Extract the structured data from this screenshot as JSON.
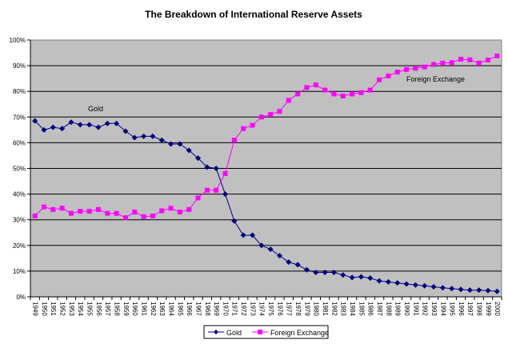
{
  "chart_data": {
    "type": "line",
    "title": "The Breakdown of International Reserve Assets",
    "xlabel": "",
    "ylabel": "",
    "ylim": [
      0,
      100
    ],
    "y_ticks": [
      "0%",
      "10%",
      "20%",
      "30%",
      "40%",
      "50%",
      "60%",
      "70%",
      "80%",
      "90%",
      "100%"
    ],
    "grid": true,
    "legend_position": "bottom",
    "x": [
      "1949",
      "1950",
      "1951",
      "1952",
      "1953",
      "1954",
      "1955",
      "1956",
      "1957",
      "1958",
      "1959",
      "1960",
      "1961",
      "1962",
      "1963",
      "1964",
      "1965",
      "1966",
      "1967",
      "1968",
      "1969",
      "1970",
      "1971",
      "1972",
      "1973",
      "1974",
      "1975",
      "1976",
      "1977",
      "1978",
      "1979",
      "1980",
      "1981",
      "1982",
      "1983",
      "1984",
      "1985",
      "1986",
      "1987",
      "1988",
      "1989",
      "1990",
      "1991",
      "1992",
      "1993",
      "1994",
      "1995",
      "1996",
      "1997",
      "1998",
      "1999",
      "2000"
    ],
    "series": [
      {
        "name": "Gold",
        "color": "#000080",
        "marker": "diamond",
        "values": [
          68.5,
          65,
          66,
          65.5,
          68,
          67,
          67,
          66,
          67.5,
          67.5,
          64.5,
          62,
          62.5,
          62.5,
          61,
          59.5,
          59.5,
          57,
          54,
          50.5,
          50,
          40,
          29.5,
          24,
          24,
          20,
          18.5,
          16,
          13.5,
          12.5,
          10.5,
          9.5,
          9.5,
          9.5,
          8.5,
          7.5,
          7.8,
          7.3,
          6.2,
          5.8,
          5.4,
          5,
          4.6,
          4.3,
          3.9,
          3.5,
          3.2,
          2.9,
          2.6,
          2.6,
          2.4,
          2.1
        ]
      },
      {
        "name": "Foreign Exchange",
        "color": "#FF00FF",
        "marker": "square",
        "values": [
          31.5,
          35,
          34,
          34.5,
          32.5,
          33.3,
          33.3,
          34,
          32.5,
          32.5,
          30.8,
          33,
          31.2,
          31.5,
          33.5,
          34.5,
          33,
          34,
          38.5,
          41.5,
          41.5,
          48,
          61,
          65.5,
          66.8,
          70,
          71,
          72.2,
          76.5,
          79,
          81.5,
          82.5,
          80.5,
          79,
          78.2,
          79,
          79.5,
          80.5,
          84.5,
          86,
          87.5,
          88.5,
          89,
          89.5,
          90.5,
          91,
          91.2,
          92.5,
          92.3,
          91,
          92.2,
          93.8
        ]
      }
    ],
    "annotations": [
      {
        "text": "Gold",
        "series": "Gold"
      },
      {
        "text": "Foreign Exchange",
        "series": "Foreign Exchange"
      }
    ],
    "legend": [
      "Gold",
      "Foreign Exchange"
    ]
  }
}
